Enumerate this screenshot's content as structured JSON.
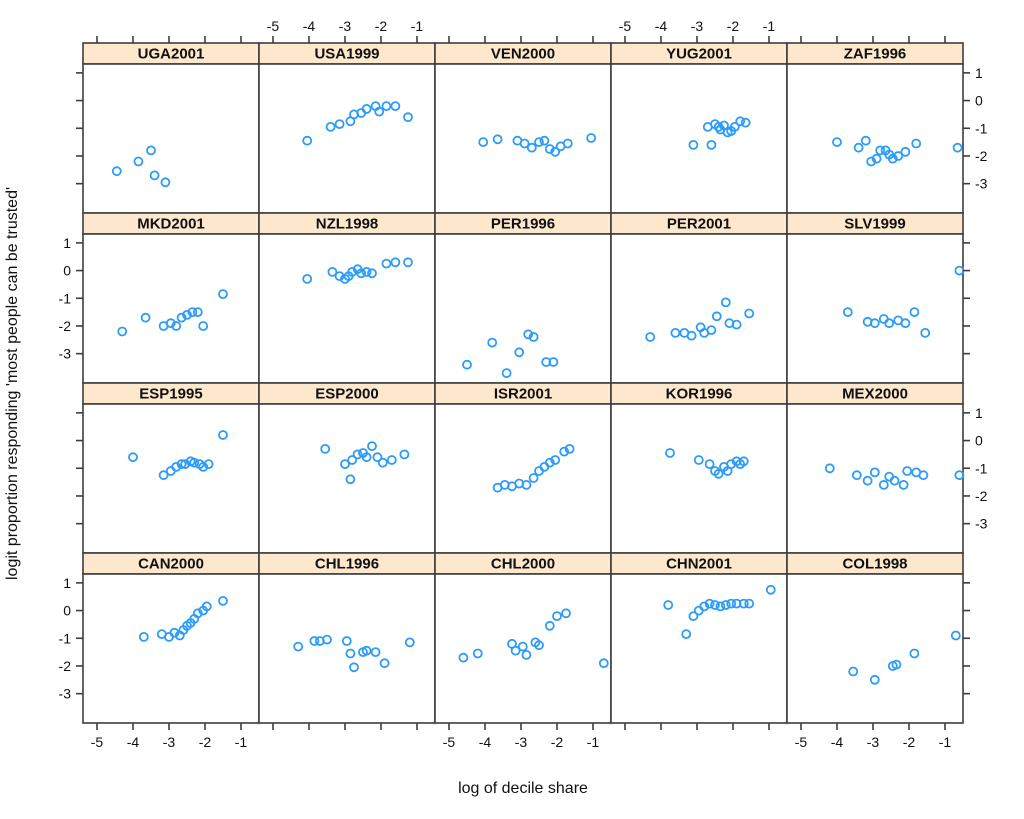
{
  "figure": {
    "background": "#ffffff",
    "kind": "lattice trellis scatterplot grid, 4 rows x 5 columns"
  },
  "chart_data": {
    "type": "scatter",
    "layout": "trellis-grid-4x5",
    "title": "",
    "xlabel": "log of decile share",
    "ylabel": "logit proportion responding 'most people can be trusted'",
    "x_ticks": [
      -5,
      -4,
      -3,
      -2,
      -1
    ],
    "y_ticks": [
      1,
      0,
      -1,
      -2,
      -3
    ],
    "xlim": [
      -5.39,
      -0.5
    ],
    "ylim": [
      -3.97,
      1.32
    ],
    "grid": false,
    "legend": "none",
    "x_tick_label_cols_top": [
      1,
      3
    ],
    "x_tick_label_cols_bottom": [
      0,
      2,
      4
    ],
    "y_tick_label_rows_left": [
      1,
      3
    ],
    "y_tick_label_rows_right": [
      0,
      2
    ],
    "point_color": "#2d9bf8",
    "strip_fill": "#fde8cd",
    "frame_color": "#3d3d3d",
    "text_color": "#111111",
    "panels": [
      {
        "label": "UGA2001",
        "points": [
          [
            -4.45,
            -2.55
          ],
          [
            -3.85,
            -2.2
          ],
          [
            -3.5,
            -1.8
          ],
          [
            -3.4,
            -2.7
          ],
          [
            -3.1,
            -2.95
          ]
        ]
      },
      {
        "label": "USA1999",
        "points": [
          [
            -4.05,
            -1.45
          ],
          [
            -3.4,
            -0.95
          ],
          [
            -3.15,
            -0.85
          ],
          [
            -2.85,
            -0.75
          ],
          [
            -2.75,
            -0.5
          ],
          [
            -2.55,
            -0.45
          ],
          [
            -2.4,
            -0.3
          ],
          [
            -2.15,
            -0.2
          ],
          [
            -2.05,
            -0.4
          ],
          [
            -1.85,
            -0.2
          ],
          [
            -1.6,
            -0.2
          ],
          [
            -1.25,
            -0.6
          ]
        ]
      },
      {
        "label": "VEN2000",
        "points": [
          [
            -4.05,
            -1.5
          ],
          [
            -3.65,
            -1.4
          ],
          [
            -3.1,
            -1.45
          ],
          [
            -2.9,
            -1.55
          ],
          [
            -2.7,
            -1.7
          ],
          [
            -2.5,
            -1.5
          ],
          [
            -2.35,
            -1.45
          ],
          [
            -2.2,
            -1.75
          ],
          [
            -2.05,
            -1.85
          ],
          [
            -1.9,
            -1.65
          ],
          [
            -1.7,
            -1.55
          ],
          [
            -1.05,
            -1.35
          ]
        ]
      },
      {
        "label": "YUG2001",
        "points": [
          [
            -3.1,
            -1.6
          ],
          [
            -2.7,
            -0.95
          ],
          [
            -2.6,
            -1.6
          ],
          [
            -2.5,
            -0.85
          ],
          [
            -2.4,
            -0.95
          ],
          [
            -2.35,
            -1.05
          ],
          [
            -2.25,
            -0.9
          ],
          [
            -2.15,
            -1.15
          ],
          [
            -2.05,
            -1.1
          ],
          [
            -1.95,
            -0.95
          ],
          [
            -1.8,
            -0.75
          ],
          [
            -1.65,
            -0.8
          ]
        ]
      },
      {
        "label": "ZAF1996",
        "points": [
          [
            -4.0,
            -1.5
          ],
          [
            -3.4,
            -1.7
          ],
          [
            -3.2,
            -1.45
          ],
          [
            -3.05,
            -2.2
          ],
          [
            -2.9,
            -2.1
          ],
          [
            -2.8,
            -1.8
          ],
          [
            -2.65,
            -1.8
          ],
          [
            -2.55,
            -1.95
          ],
          [
            -2.45,
            -2.1
          ],
          [
            -2.3,
            -2.0
          ],
          [
            -2.1,
            -1.85
          ],
          [
            -1.8,
            -1.55
          ],
          [
            -0.65,
            -1.7
          ]
        ]
      },
      {
        "label": "MKD2001",
        "points": [
          [
            -4.3,
            -2.2
          ],
          [
            -3.65,
            -1.7
          ],
          [
            -3.15,
            -2.0
          ],
          [
            -2.95,
            -1.9
          ],
          [
            -2.8,
            -2.0
          ],
          [
            -2.65,
            -1.7
          ],
          [
            -2.5,
            -1.6
          ],
          [
            -2.35,
            -1.5
          ],
          [
            -2.2,
            -1.5
          ],
          [
            -2.05,
            -2.0
          ],
          [
            -1.5,
            -0.85
          ]
        ]
      },
      {
        "label": "NZL1998",
        "points": [
          [
            -4.05,
            -0.3
          ],
          [
            -3.35,
            -0.05
          ],
          [
            -3.15,
            -0.2
          ],
          [
            -3.0,
            -0.3
          ],
          [
            -2.9,
            -0.2
          ],
          [
            -2.8,
            -0.05
          ],
          [
            -2.65,
            0.05
          ],
          [
            -2.55,
            -0.1
          ],
          [
            -2.4,
            -0.05
          ],
          [
            -2.25,
            -0.1
          ],
          [
            -1.85,
            0.25
          ],
          [
            -1.6,
            0.3
          ],
          [
            -1.25,
            0.3
          ]
        ]
      },
      {
        "label": "PER1996",
        "points": [
          [
            -4.5,
            -3.4
          ],
          [
            -3.8,
            -2.6
          ],
          [
            -3.4,
            -3.7
          ],
          [
            -3.05,
            -2.95
          ],
          [
            -2.8,
            -2.3
          ],
          [
            -2.65,
            -2.4
          ],
          [
            -2.3,
            -3.3
          ],
          [
            -2.1,
            -3.3
          ]
        ]
      },
      {
        "label": "PER2001",
        "points": [
          [
            -4.3,
            -2.4
          ],
          [
            -3.6,
            -2.25
          ],
          [
            -3.35,
            -2.25
          ],
          [
            -3.15,
            -2.35
          ],
          [
            -2.9,
            -2.05
          ],
          [
            -2.8,
            -2.25
          ],
          [
            -2.6,
            -2.15
          ],
          [
            -2.45,
            -1.65
          ],
          [
            -2.2,
            -1.15
          ],
          [
            -2.1,
            -1.9
          ],
          [
            -1.9,
            -1.95
          ],
          [
            -1.55,
            -1.55
          ]
        ]
      },
      {
        "label": "SLV1999",
        "points": [
          [
            -3.7,
            -1.5
          ],
          [
            -3.15,
            -1.85
          ],
          [
            -2.95,
            -1.9
          ],
          [
            -2.7,
            -1.75
          ],
          [
            -2.55,
            -1.9
          ],
          [
            -2.3,
            -1.8
          ],
          [
            -2.1,
            -1.9
          ],
          [
            -1.85,
            -1.5
          ],
          [
            -1.55,
            -2.25
          ],
          [
            -0.6,
            0.0
          ]
        ]
      },
      {
        "label": "ESP1995",
        "points": [
          [
            -4.0,
            -0.6
          ],
          [
            -3.15,
            -1.25
          ],
          [
            -2.95,
            -1.1
          ],
          [
            -2.8,
            -0.95
          ],
          [
            -2.65,
            -0.85
          ],
          [
            -2.55,
            -0.85
          ],
          [
            -2.4,
            -0.75
          ],
          [
            -2.3,
            -0.8
          ],
          [
            -2.15,
            -0.85
          ],
          [
            -2.05,
            -0.95
          ],
          [
            -1.9,
            -0.85
          ],
          [
            -1.5,
            0.2
          ]
        ]
      },
      {
        "label": "ESP2000",
        "points": [
          [
            -3.55,
            -0.3
          ],
          [
            -3.0,
            -0.85
          ],
          [
            -2.85,
            -1.4
          ],
          [
            -2.8,
            -0.7
          ],
          [
            -2.65,
            -0.5
          ],
          [
            -2.5,
            -0.45
          ],
          [
            -2.4,
            -0.6
          ],
          [
            -2.25,
            -0.2
          ],
          [
            -2.1,
            -0.6
          ],
          [
            -1.95,
            -0.8
          ],
          [
            -1.7,
            -0.7
          ],
          [
            -1.35,
            -0.5
          ]
        ]
      },
      {
        "label": "ISR2001",
        "points": [
          [
            -3.65,
            -1.7
          ],
          [
            -3.45,
            -1.6
          ],
          [
            -3.25,
            -1.65
          ],
          [
            -3.05,
            -1.55
          ],
          [
            -2.85,
            -1.6
          ],
          [
            -2.65,
            -1.35
          ],
          [
            -2.5,
            -1.1
          ],
          [
            -2.35,
            -0.95
          ],
          [
            -2.2,
            -0.8
          ],
          [
            -2.05,
            -0.7
          ],
          [
            -1.8,
            -0.4
          ],
          [
            -1.65,
            -0.3
          ]
        ]
      },
      {
        "label": "KOR1996",
        "points": [
          [
            -3.75,
            -0.45
          ],
          [
            -2.95,
            -0.7
          ],
          [
            -2.65,
            -0.85
          ],
          [
            -2.5,
            -1.1
          ],
          [
            -2.4,
            -1.2
          ],
          [
            -2.25,
            -0.95
          ],
          [
            -2.15,
            -1.1
          ],
          [
            -2.05,
            -0.85
          ],
          [
            -1.9,
            -0.75
          ],
          [
            -1.8,
            -0.85
          ],
          [
            -1.7,
            -0.75
          ]
        ]
      },
      {
        "label": "MEX2000",
        "points": [
          [
            -4.2,
            -1.0
          ],
          [
            -3.45,
            -1.25
          ],
          [
            -3.15,
            -1.45
          ],
          [
            -2.95,
            -1.15
          ],
          [
            -2.7,
            -1.6
          ],
          [
            -2.55,
            -1.3
          ],
          [
            -2.4,
            -1.45
          ],
          [
            -2.15,
            -1.6
          ],
          [
            -2.05,
            -1.1
          ],
          [
            -1.8,
            -1.15
          ],
          [
            -1.6,
            -1.25
          ],
          [
            -0.6,
            -1.25
          ]
        ]
      },
      {
        "label": "CAN2000",
        "points": [
          [
            -3.7,
            -0.95
          ],
          [
            -3.2,
            -0.85
          ],
          [
            -3.0,
            -0.95
          ],
          [
            -2.85,
            -0.8
          ],
          [
            -2.7,
            -0.9
          ],
          [
            -2.6,
            -0.7
          ],
          [
            -2.5,
            -0.55
          ],
          [
            -2.4,
            -0.45
          ],
          [
            -2.3,
            -0.3
          ],
          [
            -2.2,
            -0.1
          ],
          [
            -2.05,
            0.0
          ],
          [
            -1.95,
            0.15
          ],
          [
            -1.5,
            0.35
          ]
        ]
      },
      {
        "label": "CHL1996",
        "points": [
          [
            -4.3,
            -1.3
          ],
          [
            -3.85,
            -1.1
          ],
          [
            -3.7,
            -1.1
          ],
          [
            -3.5,
            -1.05
          ],
          [
            -2.95,
            -1.1
          ],
          [
            -2.85,
            -1.55
          ],
          [
            -2.75,
            -2.05
          ],
          [
            -2.5,
            -1.5
          ],
          [
            -2.4,
            -1.45
          ],
          [
            -2.15,
            -1.5
          ],
          [
            -1.9,
            -1.9
          ],
          [
            -1.2,
            -1.15
          ]
        ]
      },
      {
        "label": "CHL2000",
        "points": [
          [
            -4.6,
            -1.7
          ],
          [
            -4.2,
            -1.55
          ],
          [
            -3.25,
            -1.2
          ],
          [
            -3.15,
            -1.45
          ],
          [
            -2.95,
            -1.3
          ],
          [
            -2.85,
            -1.6
          ],
          [
            -2.6,
            -1.15
          ],
          [
            -2.5,
            -1.25
          ],
          [
            -2.2,
            -0.55
          ],
          [
            -2.0,
            -0.2
          ],
          [
            -1.75,
            -0.1
          ],
          [
            -0.7,
            -1.9
          ]
        ]
      },
      {
        "label": "CHN2001",
        "points": [
          [
            -3.8,
            0.2
          ],
          [
            -3.3,
            -0.85
          ],
          [
            -3.1,
            -0.2
          ],
          [
            -2.95,
            0.0
          ],
          [
            -2.8,
            0.15
          ],
          [
            -2.65,
            0.25
          ],
          [
            -2.5,
            0.2
          ],
          [
            -2.35,
            0.15
          ],
          [
            -2.2,
            0.2
          ],
          [
            -2.05,
            0.25
          ],
          [
            -1.9,
            0.25
          ],
          [
            -1.7,
            0.25
          ],
          [
            -1.55,
            0.25
          ],
          [
            -0.95,
            0.75
          ]
        ]
      },
      {
        "label": "COL1998",
        "points": [
          [
            -3.55,
            -2.2
          ],
          [
            -2.95,
            -2.5
          ],
          [
            -2.45,
            -2.0
          ],
          [
            -2.35,
            -1.95
          ],
          [
            -1.85,
            -1.55
          ],
          [
            -0.7,
            -0.9
          ]
        ]
      }
    ]
  }
}
